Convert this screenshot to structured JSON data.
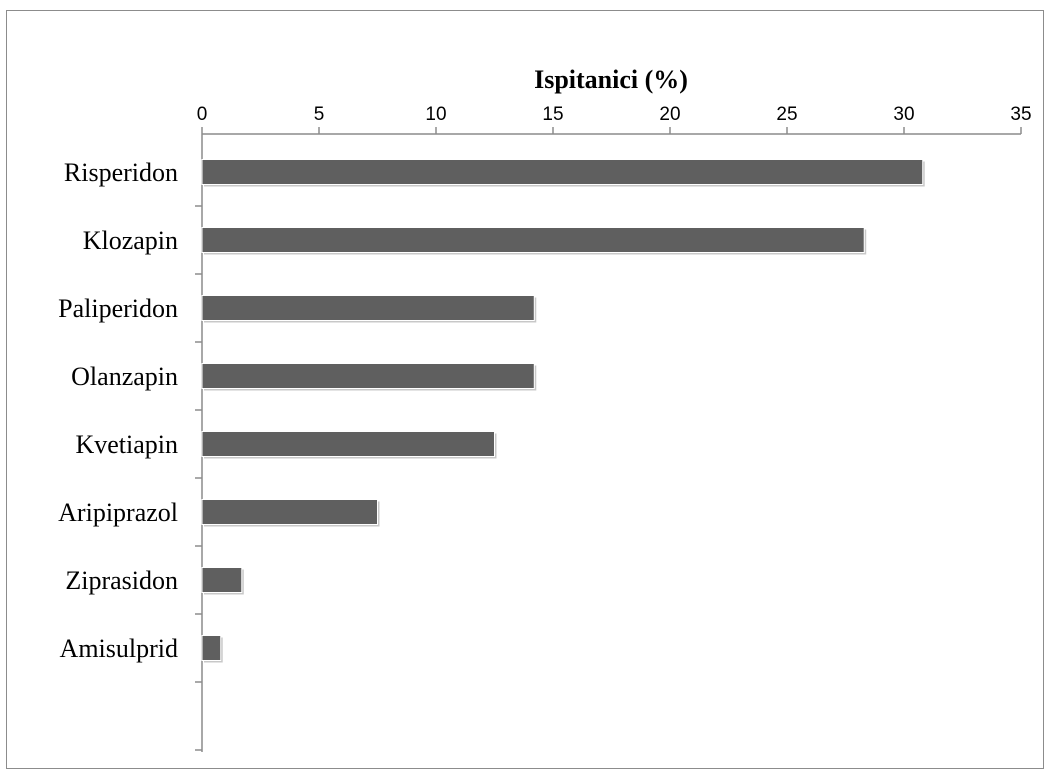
{
  "chart_data": {
    "type": "bar",
    "orientation": "horizontal",
    "title": "Ispitanici (%)",
    "xlabel": "",
    "ylabel": "",
    "categories": [
      "Risperidon",
      "Klozapin",
      "Paliperidon",
      "Olanzapin",
      "Kvetiapin",
      "Aripiprazol",
      "Ziprasidon",
      "Amisulprid"
    ],
    "values": [
      30.8,
      28.3,
      14.2,
      14.2,
      12.5,
      7.5,
      1.7,
      0.8
    ],
    "xlim": [
      0,
      35
    ],
    "ticks": [
      "0",
      "5",
      "10",
      "15",
      "20",
      "25",
      "30",
      "35"
    ],
    "axis_position": "top",
    "grid": false,
    "legend": "none",
    "colors": {
      "bar": "#5f5f5f",
      "axis": "#8c8c8c"
    }
  }
}
